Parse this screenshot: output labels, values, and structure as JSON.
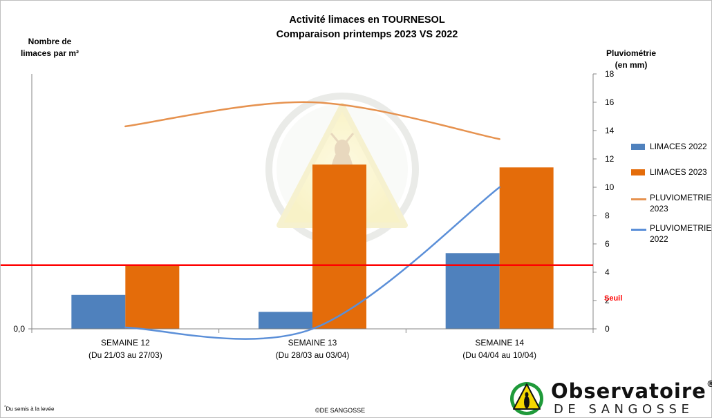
{
  "chart_data": {
    "type": "bar",
    "title": "Activité limaces en TOURNESOL",
    "subtitle": "Comparaison printemps 2023 VS 2022",
    "ylabel_left": [
      "Nombre de",
      "limaces par m²"
    ],
    "ylabel_right": [
      "Pluviométrie",
      "(en mm)"
    ],
    "categories": [
      {
        "line1": "SEMAINE 12",
        "line2": "(Du 21/03 au 27/03)"
      },
      {
        "line1": "SEMAINE 13",
        "line2": "(Du 28/03 au 03/04)"
      },
      {
        "line1": "SEMAINE 14",
        "line2": "(Du 04/04 au 10/04)"
      }
    ],
    "left_axis": {
      "tick_label": "0,0",
      "min": 0
    },
    "right_axis": {
      "min": 0,
      "max": 18,
      "step": 2,
      "ticks": [
        "0",
        "2",
        "4",
        "6",
        "8",
        "10",
        "12",
        "14",
        "16",
        "18"
      ]
    },
    "bar_series": [
      {
        "name": "LIMACES 2022",
        "color": "#4f81bd",
        "values_on_right_scale": [
          2.4,
          1.2,
          5.35
        ]
      },
      {
        "name": "LIMACES 2023",
        "color": "#e46c0a",
        "values_on_right_scale": [
          4.5,
          11.6,
          11.4
        ]
      }
    ],
    "line_series": [
      {
        "name": "PLUVIOMETRIE 2023",
        "color": "#e6924f",
        "values": [
          14.3,
          16.0,
          13.4
        ]
      },
      {
        "name": "PLUVIOMETRIE 2022",
        "color": "#5b8fd8",
        "values": [
          0.1,
          0.0,
          10.0
        ]
      }
    ],
    "threshold": {
      "label": "Seuil",
      "value_on_right_scale": 4.5,
      "color": "#ff0000"
    },
    "grid": false,
    "legend_position": "right"
  },
  "legend": [
    {
      "label": "LIMACES 2022",
      "kind": "bar",
      "color": "#4f81bd"
    },
    {
      "label": "LIMACES 2023",
      "kind": "bar",
      "color": "#e46c0a"
    },
    {
      "label": "PLUVIOMETRIE 2023",
      "kind": "line",
      "color": "#e6924f"
    },
    {
      "label": "PLUVIOMETRIE 2022",
      "kind": "line",
      "color": "#5b8fd8"
    }
  ],
  "footer": {
    "footnote_mark": "*",
    "footnote": "Du semis à la levée",
    "copyright": "©DE SANGOSSE"
  },
  "logo": {
    "line1": "Observatoire",
    "line1_mark": "®",
    "line2": "DE SANGOSSE"
  }
}
